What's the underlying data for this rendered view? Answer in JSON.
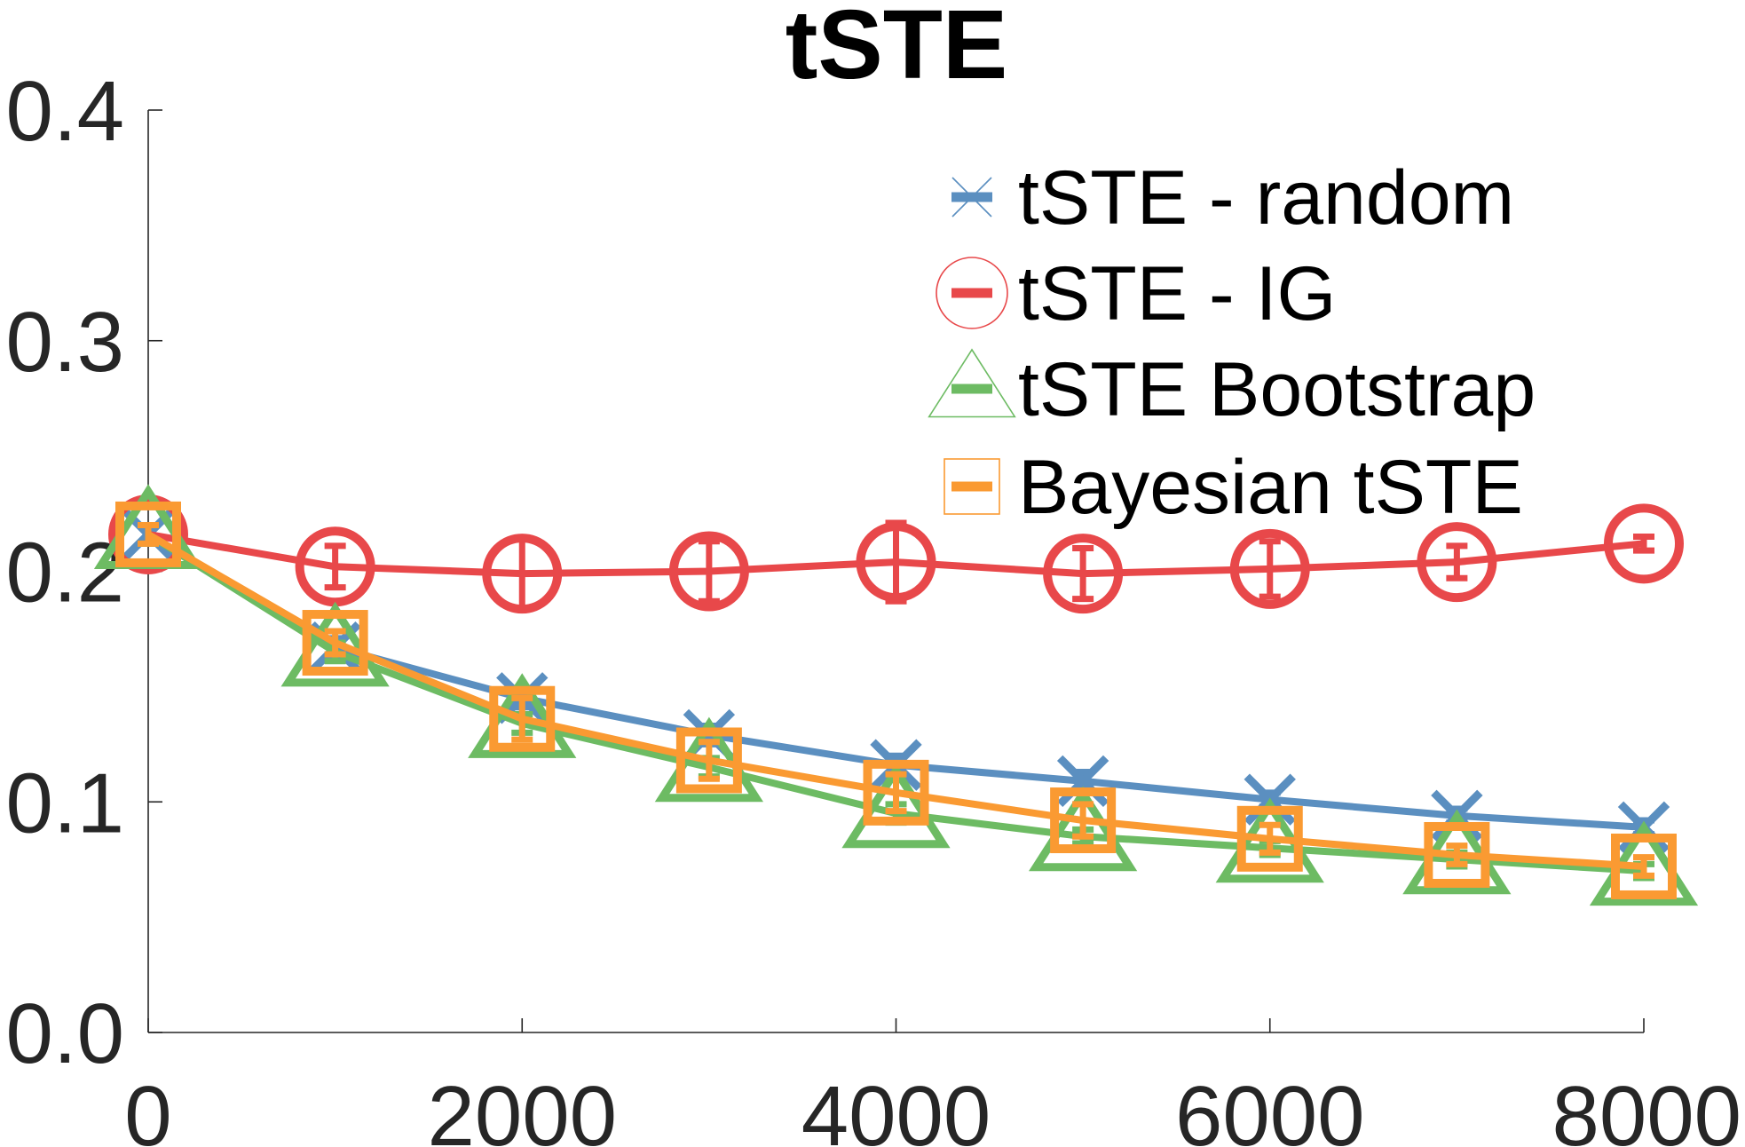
{
  "chart_data": {
    "type": "line",
    "title": "tSTE",
    "xlabel": "",
    "ylabel": "",
    "xlim": [
      0,
      8000
    ],
    "ylim": [
      0,
      0.4
    ],
    "x_ticks": [
      0,
      2000,
      4000,
      6000,
      8000
    ],
    "y_ticks": [
      0.0,
      0.1,
      0.2,
      0.3,
      0.4
    ],
    "x_tick_labels": [
      "0",
      "2000",
      "4000",
      "6000",
      "8000"
    ],
    "y_tick_labels": [
      "0.0",
      "0.1",
      "0.2",
      "0.3",
      "0.4"
    ],
    "grid": false,
    "legend_position": "top-right",
    "x": [
      0,
      1000,
      2000,
      3000,
      4000,
      5000,
      6000,
      7000,
      8000
    ],
    "series": [
      {
        "name": "tSTE - random",
        "marker": "x",
        "color": "#5b8fc0",
        "values": [
          0.216,
          0.167,
          0.145,
          0.129,
          0.116,
          0.109,
          0.101,
          0.094,
          0.089
        ],
        "errors": [
          0.004,
          0.004,
          0.004,
          0.004,
          0.004,
          0.004,
          0.003,
          0.003,
          0.003
        ]
      },
      {
        "name": "tSTE - IG",
        "marker": "circle",
        "color": "#e8484a",
        "values": [
          0.216,
          0.202,
          0.199,
          0.2,
          0.204,
          0.199,
          0.201,
          0.204,
          0.212
        ],
        "errors": [
          0.004,
          0.009,
          0.015,
          0.013,
          0.017,
          0.011,
          0.012,
          0.007,
          0.003
        ]
      },
      {
        "name": "tSTE Bootstrap",
        "marker": "triangle",
        "color": "#6dbb63",
        "values": [
          0.216,
          0.165,
          0.134,
          0.115,
          0.095,
          0.085,
          0.08,
          0.075,
          0.07
        ],
        "errors": [
          0.004,
          0.004,
          0.004,
          0.004,
          0.004,
          0.003,
          0.003,
          0.003,
          0.003
        ]
      },
      {
        "name": "Bayesian tSTE",
        "marker": "square",
        "color": "#fa9a32",
        "values": [
          0.216,
          0.169,
          0.136,
          0.118,
          0.104,
          0.092,
          0.084,
          0.077,
          0.072
        ],
        "errors": [
          0.004,
          0.005,
          0.009,
          0.008,
          0.008,
          0.007,
          0.006,
          0.004,
          0.004
        ]
      }
    ]
  }
}
